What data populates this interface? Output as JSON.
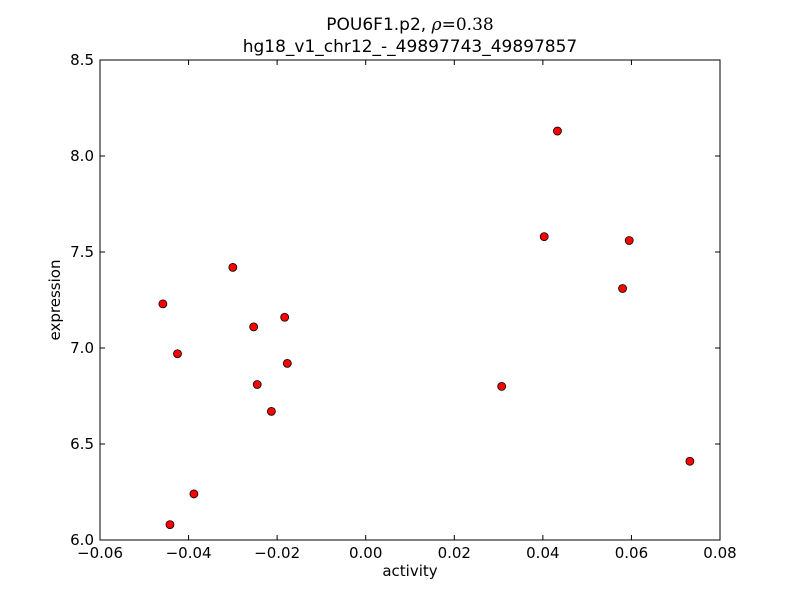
{
  "chart_data": {
    "type": "scatter",
    "title_line1_prefix": "POU6F1.p2, ",
    "title_line1_rho_symbol": "ρ",
    "title_line1_rho_eq": "=",
    "title_line1_rho_value": "0.38",
    "title_line2": "hg18_v1_chr12_-_49897743_49897857",
    "xlabel": "activity",
    "ylabel": "expression",
    "xlim": [
      -0.06,
      0.08
    ],
    "ylim": [
      6.0,
      8.5
    ],
    "x_ticks": [
      -0.06,
      -0.04,
      -0.02,
      0.0,
      0.02,
      0.04,
      0.06,
      0.08
    ],
    "x_tick_labels": [
      "−0.06",
      "−0.04",
      "−0.02",
      "0.00",
      "0.02",
      "0.04",
      "0.06",
      "0.08"
    ],
    "y_ticks": [
      6.0,
      6.5,
      7.0,
      7.5,
      8.0,
      8.5
    ],
    "y_tick_labels": [
      "6.0",
      "6.5",
      "7.0",
      "7.5",
      "8.0",
      "8.5"
    ],
    "marker_color": "#ff0000",
    "marker_edge_color": "#000000",
    "grid": false,
    "series": [
      {
        "points": [
          {
            "x": -0.0458,
            "y": 7.23
          },
          {
            "x": -0.0442,
            "y": 6.08
          },
          {
            "x": -0.0425,
            "y": 6.97
          },
          {
            "x": -0.0388,
            "y": 6.24
          },
          {
            "x": -0.03,
            "y": 7.42
          },
          {
            "x": -0.0253,
            "y": 7.11
          },
          {
            "x": -0.0245,
            "y": 6.81
          },
          {
            "x": -0.0213,
            "y": 6.67
          },
          {
            "x": -0.0183,
            "y": 7.16
          },
          {
            "x": -0.0177,
            "y": 6.92
          },
          {
            "x": 0.0307,
            "y": 6.8
          },
          {
            "x": 0.0403,
            "y": 7.58
          },
          {
            "x": 0.0433,
            "y": 8.13
          },
          {
            "x": 0.058,
            "y": 7.31
          },
          {
            "x": 0.0595,
            "y": 7.56
          },
          {
            "x": 0.0732,
            "y": 6.41
          }
        ]
      }
    ]
  }
}
